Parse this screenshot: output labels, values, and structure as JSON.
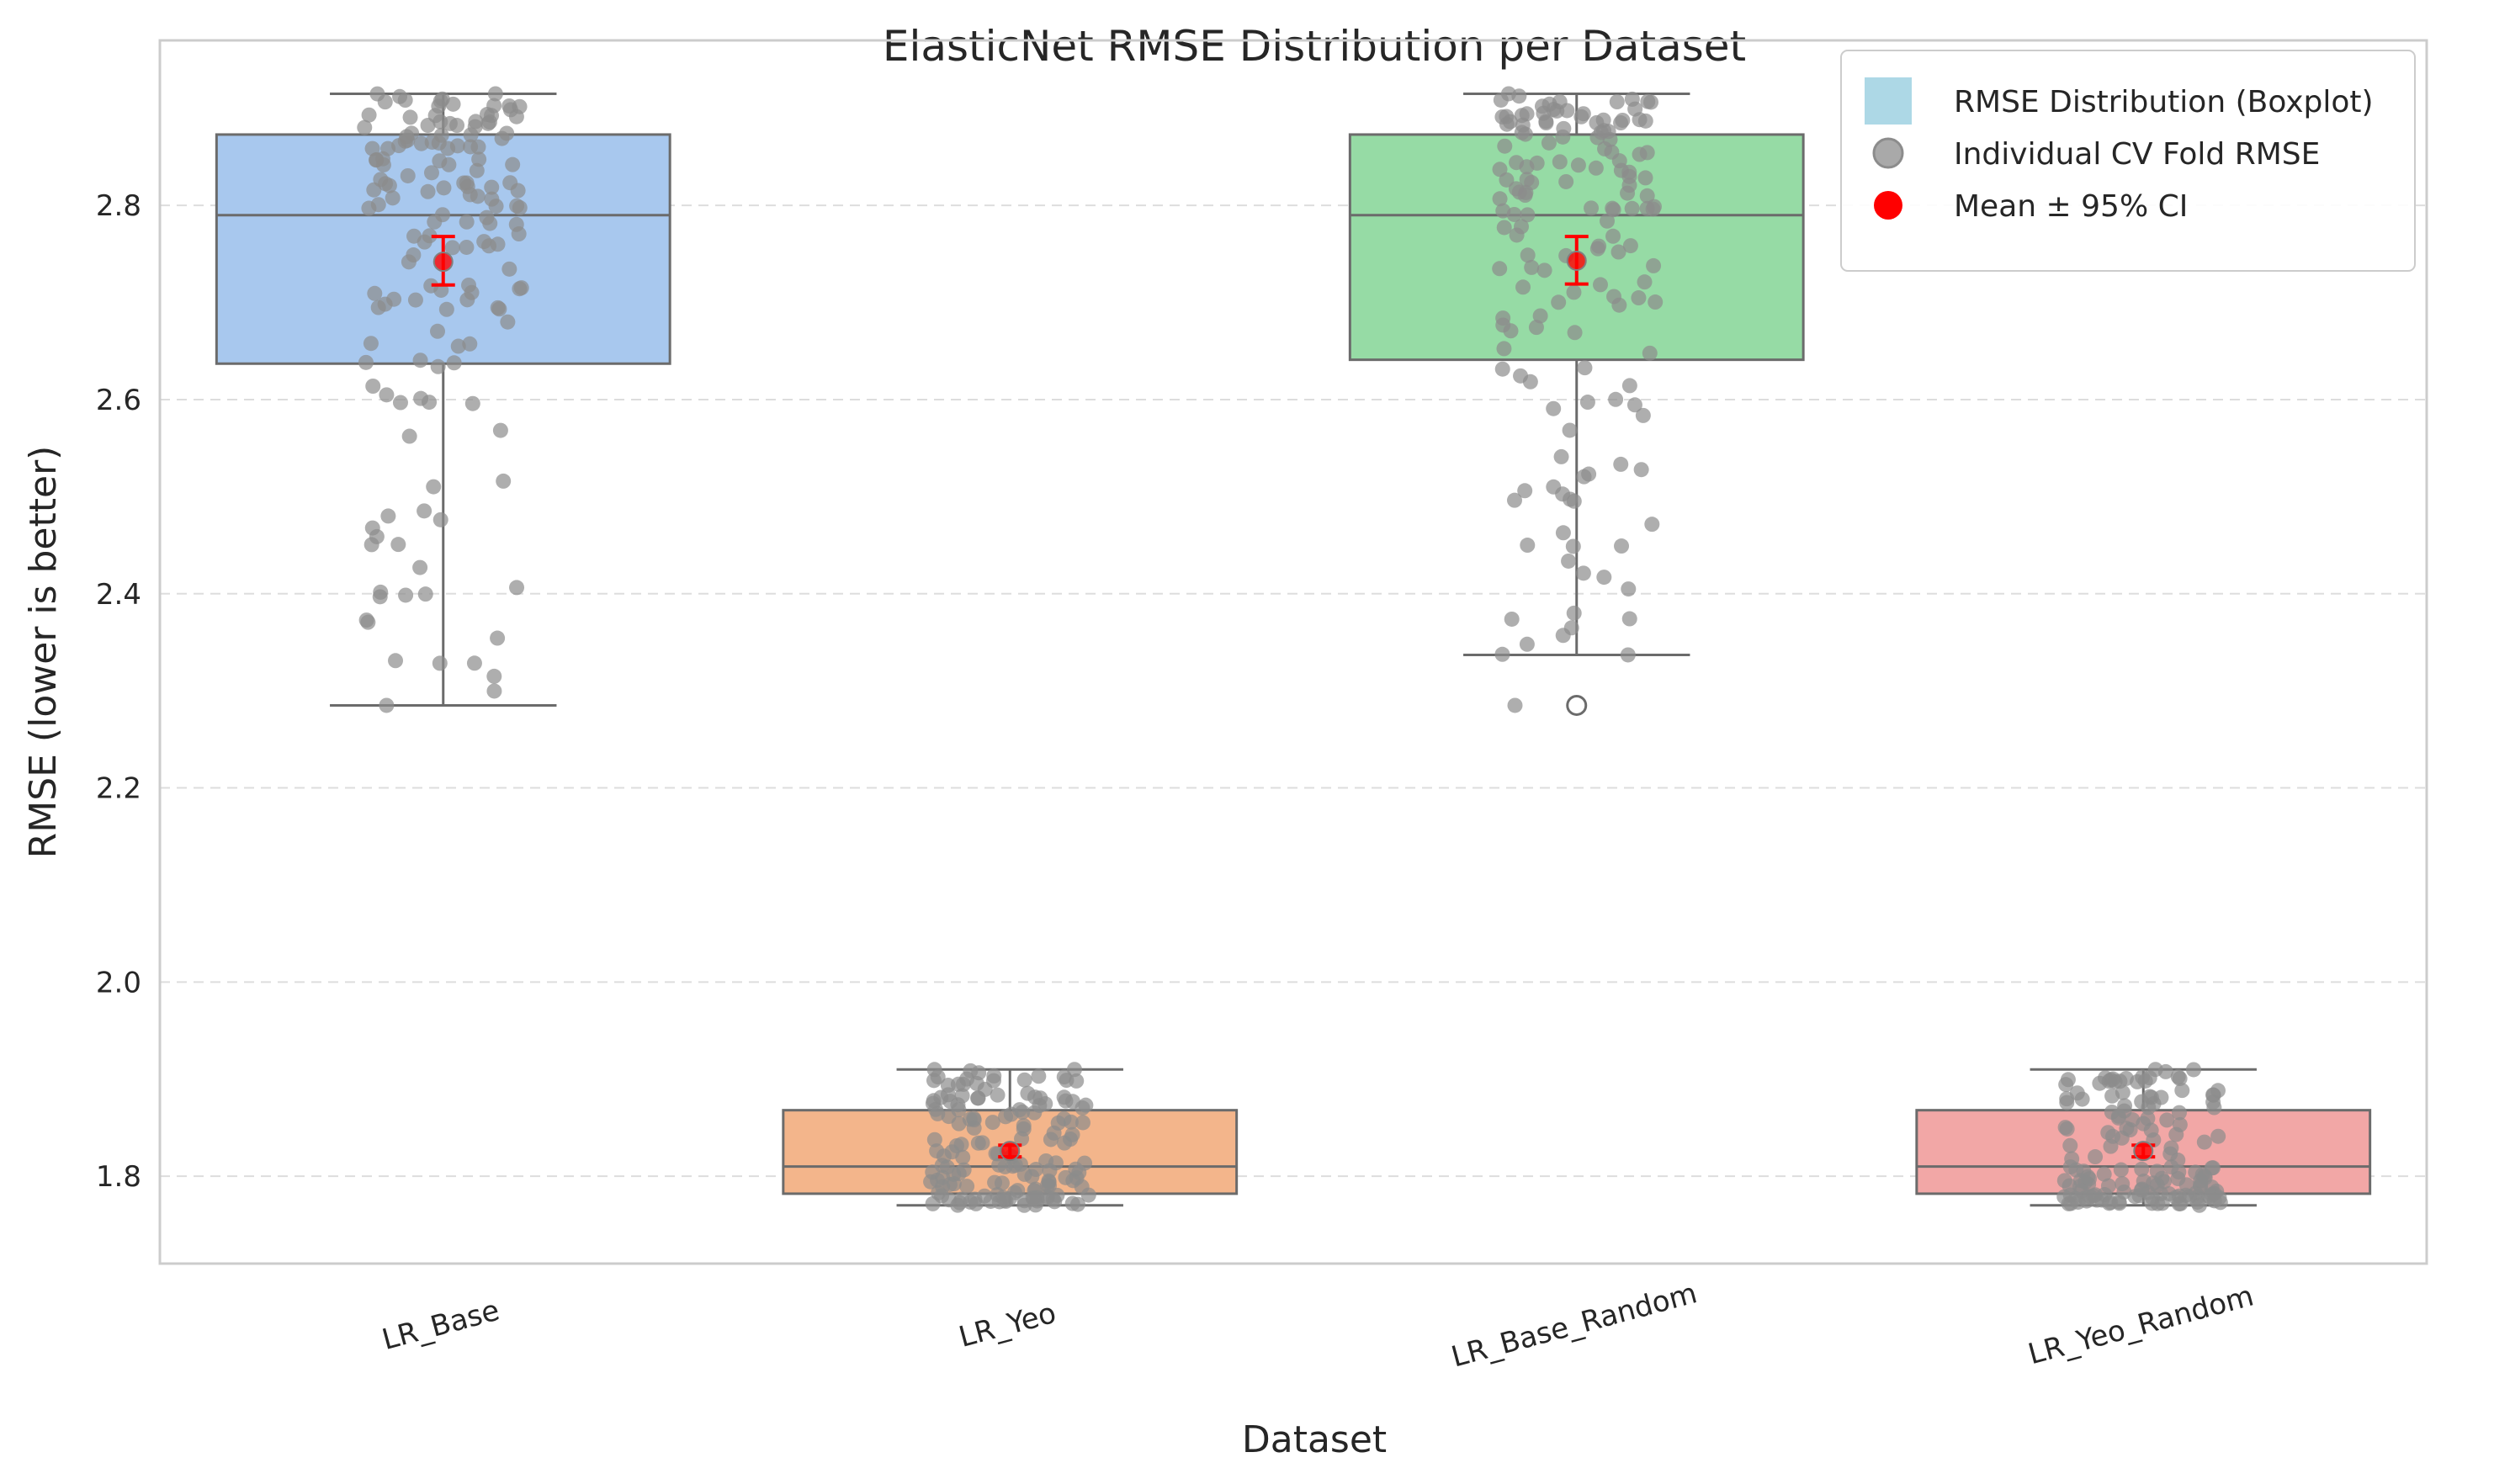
{
  "chart_data": {
    "type": "box",
    "title": "ElasticNet RMSE Distribution per Dataset",
    "xlabel": "Dataset",
    "ylabel": "RMSE (lower is better)",
    "ylim": [
      1.71,
      2.97
    ],
    "yticks": [
      1.8,
      2.0,
      2.2,
      2.4,
      2.6,
      2.8
    ],
    "grid": "horizontal dashed",
    "legend_position": "top-right",
    "categories": [
      "LR_Base",
      "LR_Yeo",
      "LR_Base_Random",
      "LR_Yeo_Random"
    ],
    "box_colors": [
      "#a8c8ee",
      "#f3b58b",
      "#96dba5",
      "#f2a7a6"
    ],
    "boxes": [
      {
        "category": "LR_Base",
        "whisker_low": 2.285,
        "q1": 2.637,
        "median": 2.79,
        "q3": 2.873,
        "whisker_high": 2.915,
        "outliers": [],
        "mean": 2.742,
        "ci_low": 2.718,
        "ci_high": 2.768
      },
      {
        "category": "LR_Yeo",
        "whisker_low": 1.77,
        "q1": 1.782,
        "median": 1.81,
        "q3": 1.868,
        "whisker_high": 1.91,
        "outliers": [],
        "mean": 1.826,
        "ci_low": 1.82,
        "ci_high": 1.832
      },
      {
        "category": "LR_Base_Random",
        "whisker_low": 2.337,
        "q1": 2.641,
        "median": 2.79,
        "q3": 2.873,
        "whisker_high": 2.915,
        "outliers": [
          2.285
        ],
        "mean": 2.743,
        "ci_low": 2.719,
        "ci_high": 2.768
      },
      {
        "category": "LR_Yeo_Random",
        "whisker_low": 1.77,
        "q1": 1.782,
        "median": 1.81,
        "q3": 1.868,
        "whisker_high": 1.91,
        "outliers": [],
        "mean": 1.826,
        "ci_low": 1.82,
        "ci_high": 1.832
      }
    ],
    "point_color": "#8c8c8c",
    "mean_color": "#ff0000",
    "legend": [
      {
        "label": "RMSE Distribution (Boxplot)",
        "marker": "square",
        "color": "#add8e6"
      },
      {
        "label": "Individual CV Fold RMSE",
        "marker": "circle",
        "color": "#a9a9a9"
      },
      {
        "label": "Mean ± 95% CI",
        "marker": "circle",
        "color": "#ff0000"
      }
    ]
  }
}
